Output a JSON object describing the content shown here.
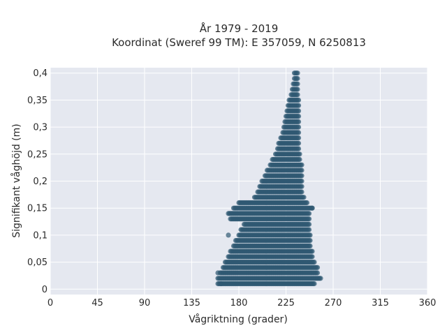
{
  "chart_data": {
    "type": "scatter",
    "title_lines": [
      "År 1979 - 2019",
      "Koordinat (Sweref 99 TM): E 357059, N 6250813"
    ],
    "xlabel": "Vågriktning (grader)",
    "ylabel": "Signifikant våghöjd (m)",
    "xlim": [
      0,
      360
    ],
    "ylim": [
      -0.01,
      0.41
    ],
    "xticks": [
      0,
      45,
      90,
      135,
      180,
      225,
      270,
      315,
      360
    ],
    "xtick_labels": [
      "0",
      "45",
      "90",
      "135",
      "180",
      "225",
      "270",
      "315",
      "360"
    ],
    "yticks": [
      0,
      0.05,
      0.1,
      0.15,
      0.2,
      0.25,
      0.3,
      0.35,
      0.4
    ],
    "ytick_labels": [
      "0",
      "0,05",
      "0,1",
      "0,15",
      "0,2",
      "0,25",
      "0,3",
      "0,35",
      "0,4"
    ],
    "grid": true,
    "marker_color": "#2f5872",
    "background_color": "#e5e8f0",
    "envelope": [
      {
        "y": 0.01,
        "xmin": 160,
        "xmax": 252
      },
      {
        "y": 0.02,
        "xmin": 160,
        "xmax": 258
      },
      {
        "y": 0.03,
        "xmin": 162,
        "xmax": 255
      },
      {
        "y": 0.04,
        "xmin": 165,
        "xmax": 255
      },
      {
        "y": 0.05,
        "xmin": 167,
        "xmax": 252
      },
      {
        "y": 0.06,
        "xmin": 170,
        "xmax": 250
      },
      {
        "y": 0.07,
        "xmin": 172,
        "xmax": 250
      },
      {
        "y": 0.08,
        "xmin": 175,
        "xmax": 248
      },
      {
        "y": 0.09,
        "xmin": 177,
        "xmax": 248
      },
      {
        "y": 0.1,
        "xmin": 180,
        "xmax": 248
      },
      {
        "y": 0.11,
        "xmin": 182,
        "xmax": 247
      },
      {
        "y": 0.12,
        "xmin": 185,
        "xmax": 247
      },
      {
        "y": 0.13,
        "xmin": 172,
        "xmax": 247
      },
      {
        "y": 0.14,
        "xmin": 170,
        "xmax": 247
      },
      {
        "y": 0.15,
        "xmin": 175,
        "xmax": 250
      },
      {
        "y": 0.16,
        "xmin": 180,
        "xmax": 245
      },
      {
        "y": 0.17,
        "xmin": 195,
        "xmax": 242
      },
      {
        "y": 0.18,
        "xmin": 198,
        "xmax": 240
      },
      {
        "y": 0.19,
        "xmin": 200,
        "xmax": 240
      },
      {
        "y": 0.2,
        "xmin": 202,
        "xmax": 240
      },
      {
        "y": 0.21,
        "xmin": 205,
        "xmax": 240
      },
      {
        "y": 0.22,
        "xmin": 207,
        "xmax": 240
      },
      {
        "y": 0.23,
        "xmin": 210,
        "xmax": 240
      },
      {
        "y": 0.24,
        "xmin": 212,
        "xmax": 238
      },
      {
        "y": 0.25,
        "xmin": 215,
        "xmax": 238
      },
      {
        "y": 0.26,
        "xmin": 217,
        "xmax": 237
      },
      {
        "y": 0.27,
        "xmin": 218,
        "xmax": 237
      },
      {
        "y": 0.28,
        "xmin": 220,
        "xmax": 237
      },
      {
        "y": 0.29,
        "xmin": 222,
        "xmax": 237
      },
      {
        "y": 0.3,
        "xmin": 223,
        "xmax": 237
      },
      {
        "y": 0.31,
        "xmin": 224,
        "xmax": 237
      },
      {
        "y": 0.32,
        "xmin": 225,
        "xmax": 237
      },
      {
        "y": 0.33,
        "xmin": 226,
        "xmax": 237
      },
      {
        "y": 0.34,
        "xmin": 227,
        "xmax": 237
      },
      {
        "y": 0.35,
        "xmin": 228,
        "xmax": 237
      },
      {
        "y": 0.36,
        "xmin": 230,
        "xmax": 236
      },
      {
        "y": 0.37,
        "xmin": 231,
        "xmax": 236
      },
      {
        "y": 0.38,
        "xmin": 232,
        "xmax": 236
      },
      {
        "y": 0.39,
        "xmin": 233,
        "xmax": 236
      },
      {
        "y": 0.4,
        "xmin": 233,
        "xmax": 236
      }
    ],
    "outliers": [
      {
        "x": 170,
        "y": 0.1
      },
      {
        "x": 163,
        "y": 0.01
      },
      {
        "x": 160,
        "y": 0.03
      },
      {
        "x": 250,
        "y": 0.15
      }
    ]
  }
}
